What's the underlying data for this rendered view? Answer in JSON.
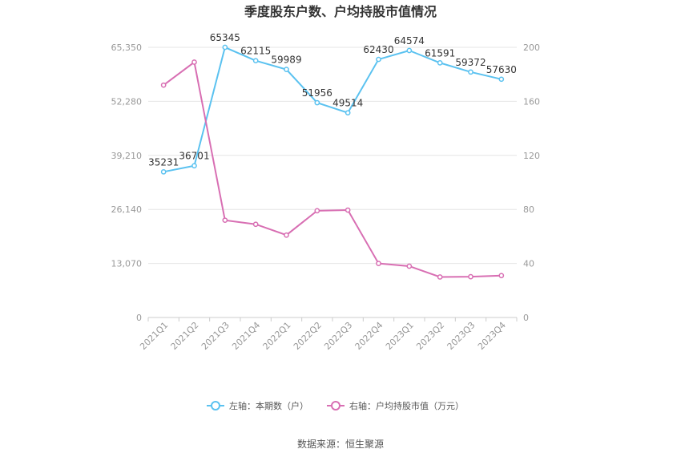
{
  "chart_data": {
    "type": "line",
    "title": "季度股东户数、户均持股市值情况",
    "categories": [
      "2021Q1",
      "2021Q2",
      "2021Q3",
      "2021Q4",
      "2022Q1",
      "2022Q2",
      "2022Q3",
      "2022Q4",
      "2023Q1",
      "2023Q2",
      "2023Q3",
      "2023Q4"
    ],
    "left_axis": {
      "ticks": [
        "0",
        "13,070",
        "26,140",
        "39,210",
        "52,280",
        "65,350"
      ],
      "ylim": [
        0,
        65350
      ]
    },
    "right_axis": {
      "ticks": [
        "0",
        "40",
        "80",
        "120",
        "160",
        "200"
      ],
      "ylim": [
        0,
        200
      ]
    },
    "series": [
      {
        "name": "左轴：本期数（户）",
        "axis": "left",
        "color": "#5bc2f0",
        "values": [
          35231,
          36701,
          65345,
          62115,
          59989,
          51956,
          49514,
          62430,
          64574,
          61591,
          59372,
          57630
        ],
        "data_labels": [
          "35231",
          "36701",
          "65345",
          "62115",
          "59989",
          "51956",
          "49514",
          "62430",
          "64574",
          "61591",
          "59372",
          "57630"
        ]
      },
      {
        "name": "右轴：户均持股市值（万元）",
        "axis": "right",
        "color": "#d86fb3",
        "values": [
          172,
          189,
          72,
          69,
          61,
          79,
          79.5,
          40,
          38,
          30,
          30.2,
          31
        ]
      }
    ],
    "grid": true,
    "legend_position": "bottom"
  },
  "source_text": "数据来源：恒生聚源"
}
